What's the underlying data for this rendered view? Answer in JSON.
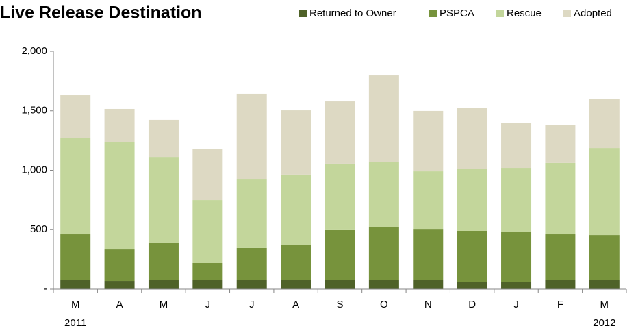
{
  "chart_data": {
    "type": "stacked_bar",
    "title": "Live Release Destination",
    "categories": [
      "M",
      "A",
      "M",
      "J",
      "J",
      "A",
      "S",
      "O",
      "N",
      "D",
      "J",
      "F",
      "M"
    ],
    "year_labels": [
      "2011",
      "2012"
    ],
    "series": [
      {
        "name": "Returned to Owner",
        "color": "#4f6228",
        "values": [
          80,
          69,
          80,
          75,
          75,
          80,
          75,
          80,
          80,
          58,
          63,
          80,
          75
        ]
      },
      {
        "name": "PSPCA",
        "color": "#77933c",
        "values": [
          381,
          265,
          312,
          144,
          271,
          289,
          421,
          439,
          421,
          432,
          421,
          381,
          380
        ]
      },
      {
        "name": "Rescue",
        "color": "#c3d69b",
        "values": [
          807,
          905,
          720,
          530,
          576,
          594,
          559,
          553,
          490,
          524,
          536,
          600,
          732
        ]
      },
      {
        "name": "Adopted",
        "color": "#ddd9c3",
        "values": [
          363,
          277,
          312,
          427,
          721,
          541,
          524,
          726,
          508,
          513,
          375,
          322,
          415
        ]
      }
    ],
    "ylim": [
      0,
      2000
    ],
    "yticks": [
      {
        "value": 0,
        "label": "-"
      },
      500,
      {
        "value": 1000,
        "label": "1,000"
      },
      {
        "value": 1500,
        "label": "1,500"
      },
      {
        "value": 2000,
        "label": "2,000"
      }
    ],
    "grid": false,
    "legend": "top-right"
  }
}
